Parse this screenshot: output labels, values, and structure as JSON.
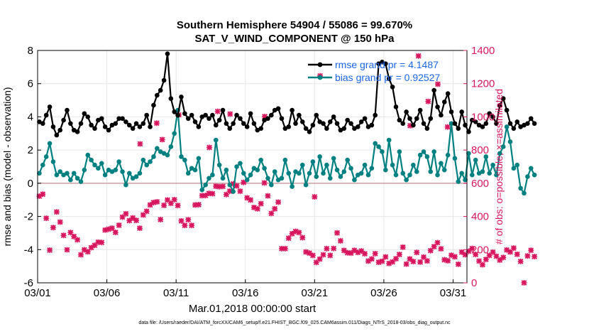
{
  "colors": {
    "rmse": "#000000",
    "bias": "#008080",
    "obs": "#d8175f",
    "legend_text": "#1a66e6",
    "zero_line": "#c8a0a0",
    "grid": "#e6e6e6"
  },
  "chart_data": {
    "type": "line",
    "title": "Southern Hemisphere 54904 / 55086 = 99.670%",
    "subtitle": "SAT_V_WIND_COMPONENT @ 150 hPa",
    "xlabel": "Mar.01,2018 00:00:00 start",
    "ylabel_left": "rmse and bias (model - observation)",
    "ylabel_right": "# of obs: o=possible; ×=assimilated",
    "footnote": "data file: /Users/raeder/DAI/ATM_forcXX/CAM6_setup/f.e21.FHIST_BGC.f09_025.CAM6assim.011/Diags_NTrS_2018-03/obs_diag_output.nc",
    "xlim_days": [
      0,
      31
    ],
    "ylim_left": [
      -6,
      8
    ],
    "ylim_right": [
      0,
      1400
    ],
    "x_tick_labels": [
      "03/01",
      "03/06",
      "03/11",
      "03/16",
      "03/21",
      "03/26",
      "03/31"
    ],
    "x_tick_days": [
      0,
      5,
      10,
      15,
      20,
      25,
      30
    ],
    "y_left_ticks": [
      -6,
      -4,
      -2,
      0,
      2,
      4,
      6,
      8
    ],
    "y_right_ticks": [
      0,
      200,
      400,
      600,
      800,
      1000,
      1200,
      1400
    ],
    "legend": {
      "position": "top-right",
      "entries": [
        "rmse grand pr = 4.1487",
        "bias grand pr = 0.92527"
      ]
    },
    "time_step_days": 0.25,
    "series": [
      {
        "name": "rmse grand pr = 4.1487",
        "axis": "left",
        "values": [
          3.7,
          3.6,
          4.1,
          4.6,
          3.4,
          2.9,
          3.2,
          3.8,
          4.4,
          3.6,
          3.2,
          3.1,
          3.6,
          4.2,
          4.0,
          3.5,
          3.3,
          3.8,
          3.9,
          3.4,
          3.2,
          3.5,
          3.6,
          3.9,
          3.9,
          3.7,
          3.5,
          3.3,
          3.6,
          3.4,
          3.6,
          4.1,
          3.4,
          4.7,
          5.3,
          5.6,
          6.2,
          7.8,
          5.1,
          4.3,
          4.1,
          5.2,
          4.2,
          3.9,
          4.1,
          3.7,
          3.4,
          4.0,
          4.1,
          3.9,
          4.1,
          3.5,
          3.8,
          4.4,
          3.6,
          3.3,
          3.6,
          4.1,
          3.9,
          3.6,
          3.4,
          4.2,
          3.6,
          3.2,
          3.3,
          3.8,
          3.9,
          4.1,
          4.4,
          4.5,
          3.9,
          3.3,
          3.4,
          4.4,
          3.6,
          4.1,
          3.7,
          3.3,
          3.1,
          3.5,
          4.1,
          3.7,
          3.6,
          3.3,
          3.7,
          4.0,
          3.6,
          3.2,
          3.3,
          3.8,
          3.6,
          3.3,
          3.4,
          3.7,
          3.9,
          3.4,
          3.5,
          4.1,
          7.2,
          7.3,
          7.2,
          6.3,
          5.8,
          4.6,
          3.8,
          3.6,
          4.3,
          3.9,
          3.5,
          3.9,
          4.4,
          3.6,
          3.3,
          3.9,
          5.6,
          4.6,
          4.1,
          4.9,
          5.4,
          4.3,
          3.6,
          3.3,
          4.3,
          3.5,
          3.1,
          3.8,
          3.7,
          3.5,
          3.4,
          3.6,
          4.2,
          4.0,
          3.6,
          4.7,
          5.1,
          4.4,
          3.6,
          3.3,
          3.7,
          3.4,
          3.5,
          3.6,
          3.9,
          3.6
        ]
      },
      {
        "name": "bias grand pr = 0.92527",
        "axis": "left",
        "values": [
          0.6,
          1.1,
          1.6,
          2.4,
          1.3,
          0.5,
          0.7,
          0.5,
          0.6,
          0.2,
          0.6,
          0.3,
          0.1,
          0.8,
          1.7,
          1.4,
          1.1,
          0.9,
          1.2,
          0.5,
          0.8,
          0.7,
          0.8,
          1.3,
          0.7,
          -0.1,
          0.6,
          0.3,
          0.4,
          0.6,
          1.4,
          1.1,
          1.3,
          1.6,
          2.1,
          1.9,
          1.8,
          1.7,
          2.2,
          3.0,
          4.4,
          1.6,
          1.4,
          0.6,
          0.9,
          0.8,
          1.5,
          -0.4,
          -0.1,
          0.3,
          0.5,
          2.6,
          1.1,
          0.3,
          0.8,
          -0.1,
          -0.5,
          1.0,
          1.2,
          0.6,
          0.2,
          0.5,
          0.9,
          0.8,
          1.4,
          0.9,
          0.3,
          -0.1,
          0.7,
          0.2,
          0.3,
          1.4,
          0.6,
          -0.2,
          0.7,
          0.6,
          1.1,
          -0.1,
          0.6,
          1.3,
          0.4,
          1.6,
          0.6,
          1.1,
          0.3,
          1.5,
          0.8,
          0.4,
          0.7,
          1.4,
          0.9,
          0.2,
          0.5,
          0.6,
          1.1,
          0.5,
          0.9,
          2.4,
          2.2,
          1.9,
          0.8,
          2.6,
          1.1,
          0.5,
          1.9,
          0.6,
          0.2,
          0.5,
          1.1,
          0.7,
          1.7,
          1.9,
          1.6,
          0.7,
          1.9,
          0.5,
          1.2,
          0.8,
          1.7,
          3.6,
          1.5,
          0.1,
          0.6,
          0.2,
          1.8,
          0.5,
          1.4,
          0.6,
          0.7,
          1.6,
          0.6,
          1.1,
          0.5,
          1.8,
          2.2,
          3.4,
          2.5,
          0.9,
          1.1,
          -0.3,
          -0.6,
          0.4,
          0.9,
          0.5
        ]
      },
      {
        "name": "# of obs assimilated",
        "axis": "right",
        "values": [
          522,
          534,
          389,
          197,
          333,
          427,
          366,
          286,
          199,
          303,
          279,
          259,
          169,
          199,
          187,
          212,
          226,
          245,
          243,
          318,
          323,
          329,
          304,
          347,
          396,
          416,
          375,
          391,
          376,
          329,
          409,
          431,
          469,
          484,
          488,
          381,
          467,
          499,
          479,
          501,
          466,
          373,
          346,
          380,
          346,
          469,
          471,
          525,
          526,
          539,
          537,
          582,
          579,
          581,
          532,
          552,
          596,
          584,
          552,
          605,
          512,
          499,
          454,
          446,
          477,
          602,
          524,
          418,
          446,
          486,
          206,
          206,
          269,
          296,
          310,
          303,
          272,
          186,
          179,
          165,
          123,
          143,
          169,
          206,
          165,
          207,
          301,
          253,
          195,
          181,
          179,
          196,
          183,
          192,
          175,
          131,
          144,
          176,
          124,
          130,
          156,
          117,
          126,
          145,
          171,
          215,
          113,
          144,
          128,
          183,
          125,
          155,
          132,
          194,
          218,
          242,
          205,
          139,
          133,
          166,
          157,
          112,
          185,
          169,
          190,
          207,
          171,
          131,
          109,
          141,
          165,
          185,
          160,
          137,
          153,
          198,
          186,
          209,
          172,
          129,
          0,
          162,
          196,
          158
        ]
      },
      {
        "name": "# of obs possible",
        "axis": "right",
        "values": [
          524,
          536,
          391,
          199,
          335,
          429,
          368,
          288,
          201,
          305,
          281,
          261,
          171,
          201,
          189,
          214,
          228,
          247,
          245,
          320,
          325,
          331,
          306,
          349,
          398,
          418,
          377,
          393,
          378,
          331,
          411,
          433,
          471,
          486,
          490,
          383,
          469,
          501,
          481,
          503,
          468,
          375,
          348,
          382,
          348,
          471,
          473,
          527,
          528,
          541,
          539,
          584,
          581,
          583,
          534,
          554,
          598,
          586,
          554,
          607,
          514,
          501,
          456,
          448,
          479,
          604,
          526,
          420,
          448,
          488,
          208,
          208,
          271,
          298,
          312,
          305,
          274,
          188,
          181,
          167,
          125,
          145,
          171,
          208,
          167,
          209,
          303,
          255,
          197,
          183,
          181,
          198,
          185,
          194,
          177,
          133,
          146,
          178,
          126,
          132,
          158,
          119,
          128,
          147,
          173,
          217,
          115,
          146,
          130,
          185,
          127,
          157,
          134,
          196,
          220,
          244,
          207,
          141,
          135,
          168,
          159,
          114,
          187,
          171,
          192,
          209,
          173,
          133,
          111,
          143,
          167,
          187,
          162,
          139,
          155,
          200,
          188,
          211,
          174,
          131,
          2,
          164,
          198,
          160
        ]
      }
    ],
    "extra_obs_markers": [
      {
        "day": 7.4,
        "count": 837
      },
      {
        "day": 8.6,
        "count": 962
      },
      {
        "day": 9.0,
        "count": 863
      },
      {
        "day": 10.2,
        "count": 1012
      },
      {
        "day": 12.4,
        "count": 816
      },
      {
        "day": 13.0,
        "count": 1033
      },
      {
        "day": 13.9,
        "count": 1017
      },
      {
        "day": 16.4,
        "count": 1002
      },
      {
        "day": 20.0,
        "count": 518
      },
      {
        "day": 20.4,
        "count": 1247
      },
      {
        "day": 27.5,
        "count": 1367
      },
      {
        "day": 28.2,
        "count": 1093
      },
      {
        "day": 26.9,
        "count": 947
      },
      {
        "day": 28.9,
        "count": 1197
      },
      {
        "day": 29.6,
        "count": 939
      }
    ]
  }
}
